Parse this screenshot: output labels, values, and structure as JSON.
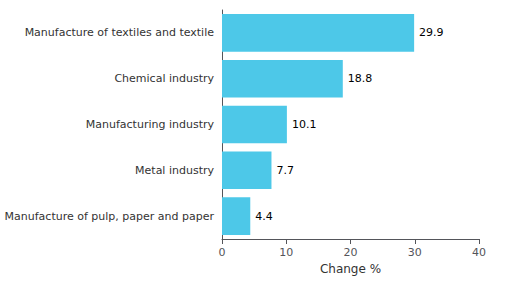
{
  "chart_data": {
    "type": "bar",
    "orientation": "horizontal",
    "categories": [
      "Manufacture of pulp, paper and paper",
      "Metal industry",
      "Manufacturing industry",
      "Chemical industry",
      "Manufacture of textiles and textile"
    ],
    "values": [
      4.4,
      7.7,
      10.1,
      18.8,
      29.9
    ],
    "color": "#4DC8E8",
    "xlabel": "Change %",
    "xlim": [
      0,
      40
    ],
    "xticks": [
      0,
      10,
      20,
      30,
      40
    ],
    "grid": false,
    "data_labels": true
  }
}
